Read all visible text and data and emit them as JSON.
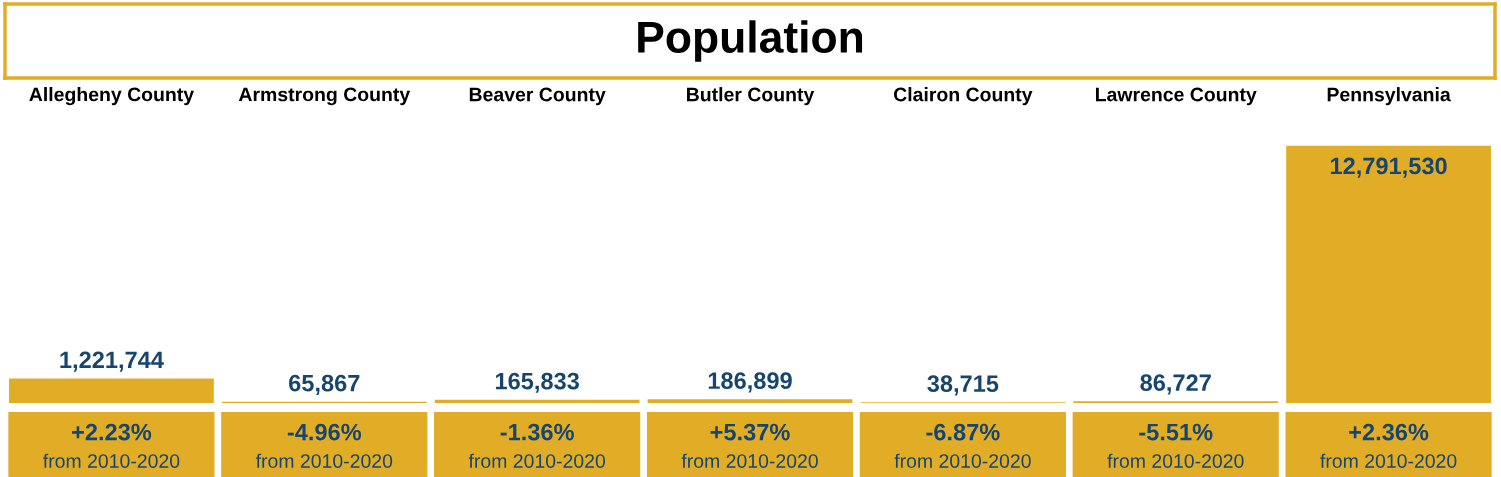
{
  "chart_data": {
    "type": "bar",
    "title": "Population",
    "categories": [
      "Allegheny County",
      "Armstrong County",
      "Beaver County",
      "Butler County",
      "Clairon County",
      "Lawrence County",
      "Pennsylvania"
    ],
    "values": [
      1221744,
      65867,
      165833,
      186899,
      38715,
      86727,
      12791530
    ],
    "value_labels": [
      "1,221,744",
      "65,867",
      "165,833",
      "186,899",
      "38,715",
      "86,727",
      "12,791,530"
    ],
    "color": "#e2ad26",
    "annotations": [
      "+2.23%\nfrom 2010-2020",
      "-4.96%\nfrom 2010-2020",
      "-1.36%\nfrom 2010-2020",
      "+5.37%\nfrom 2010-2020",
      "-6.87%\nfrom 2010-2020",
      "-5.51%\nfrom 2010-2020",
      "+2.36%\nfrom 2010-2020"
    ],
    "grid": false,
    "legend": false
  }
}
